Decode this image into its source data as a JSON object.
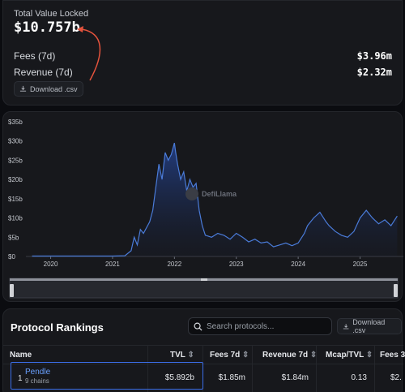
{
  "summary": {
    "tvl_label": "Total Value Locked",
    "tvl_value": "$10.757b",
    "fees_label": "Fees (7d)",
    "fees_value": "$3.96m",
    "revenue_label": "Revenue (7d)",
    "revenue_value": "$2.32m",
    "download_label": "Download .csv"
  },
  "colors": {
    "accent": "#3b6ee8",
    "line": "#4a7bd8",
    "annotation_arrow": "#e5533d"
  },
  "chart_data": {
    "type": "area",
    "watermark": "DefiLlama",
    "y_ticks": [
      "$0",
      "$5b",
      "$10b",
      "$15b",
      "$20b",
      "$25b",
      "$30b",
      "$35b"
    ],
    "x_ticks": [
      "2020",
      "2021",
      "2022",
      "2023",
      "2024",
      "2025"
    ],
    "ylim": [
      0,
      35
    ],
    "y_unit": "billions USD",
    "x": [
      2019.7,
      2020.0,
      2020.5,
      2021.0,
      2021.2,
      2021.3,
      2021.35,
      2021.4,
      2021.45,
      2021.5,
      2021.6,
      2021.65,
      2021.7,
      2021.75,
      2021.8,
      2021.85,
      2021.9,
      2021.95,
      2022.0,
      2022.02,
      2022.05,
      2022.1,
      2022.15,
      2022.2,
      2022.25,
      2022.3,
      2022.35,
      2022.4,
      2022.45,
      2022.5,
      2022.6,
      2022.7,
      2022.8,
      2022.9,
      2023.0,
      2023.1,
      2023.2,
      2023.3,
      2023.4,
      2023.5,
      2023.6,
      2023.7,
      2023.8,
      2023.9,
      2024.0,
      2024.1,
      2024.15,
      2024.25,
      2024.35,
      2024.45,
      2024.5,
      2024.6,
      2024.7,
      2024.8,
      2024.9,
      2025.0,
      2025.1,
      2025.2,
      2025.3,
      2025.4,
      2025.5,
      2025.6
    ],
    "values": [
      0.1,
      0.1,
      0.1,
      0.1,
      0.2,
      1.5,
      5.0,
      3.0,
      7.0,
      6.0,
      9.0,
      12.0,
      18.0,
      24.0,
      20.0,
      27.0,
      25.0,
      26.5,
      29.5,
      27.0,
      24.0,
      20.0,
      22.0,
      17.0,
      20.0,
      18.0,
      19.0,
      12.0,
      8.0,
      5.5,
      5.0,
      6.0,
      5.5,
      4.5,
      6.0,
      5.0,
      3.8,
      4.5,
      3.5,
      3.8,
      2.5,
      3.0,
      3.5,
      2.8,
      3.5,
      6.0,
      8.0,
      10.0,
      11.5,
      9.0,
      8.0,
      6.5,
      5.5,
      5.0,
      6.5,
      10.0,
      12.0,
      10.0,
      8.5,
      9.5,
      8.0,
      10.5
    ]
  },
  "rankings": {
    "title": "Protocol Rankings",
    "search_placeholder": "Search protocols...",
    "download_label": "Download .csv",
    "columns": [
      "Name",
      "TVL",
      "Fees 7d",
      "Revenue 7d",
      "Mcap/TVL",
      "Fees 3"
    ],
    "rows": [
      {
        "rank": "1",
        "name": "Pendle",
        "chains": "9 chains",
        "tvl": "$5.892b",
        "fees": "$1.85m",
        "revenue": "$1.84m",
        "mcap_tvl": "0.13",
        "fees_30d": "$2."
      }
    ]
  }
}
